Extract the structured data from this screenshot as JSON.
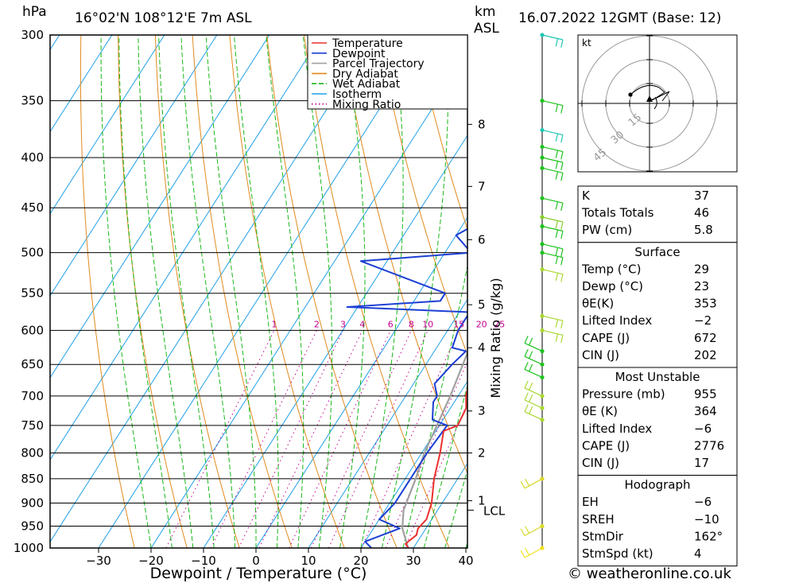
{
  "header": {
    "pressure_unit": "hPa",
    "location": "16°02'N  108°12'E  7m  ASL",
    "km_unit": "km",
    "asl_unit": "ASL",
    "datetime": "16.07.2022  12GMT  (Base: 12)"
  },
  "footer": {
    "copyright": "© weatheronline.co.uk"
  },
  "colors": {
    "temperature": "#e8302f",
    "dewpoint": "#1c3fd4",
    "parcel": "#a0a0a0",
    "dry_adiabat": "#e08a1e",
    "wet_adiabat": "#18b818",
    "isotherm": "#1ea0e8",
    "mixing_ratio": "#c0008f"
  },
  "chart_data": {
    "type": "line",
    "xlabel": "Dewpoint / Temperature (°C)",
    "ylabel": "hPa",
    "right_label": "Mixing Ratio (g/kg)",
    "xlim": [
      -40,
      40
    ],
    "ylim": [
      1000,
      300
    ],
    "x_ticks": [
      "-30",
      "-20",
      "-10",
      "0",
      "10",
      "20",
      "30",
      "40"
    ],
    "pressure_levels": [
      300,
      350,
      400,
      450,
      500,
      550,
      600,
      650,
      700,
      750,
      800,
      850,
      900,
      950,
      1000
    ],
    "km_ticks": [
      {
        "km": "8",
        "p": 370
      },
      {
        "km": "7",
        "p": 428
      },
      {
        "km": "6",
        "p": 485
      },
      {
        "km": "5",
        "p": 565
      },
      {
        "km": "4",
        "p": 625
      },
      {
        "km": "3",
        "p": 725
      },
      {
        "km": "2",
        "p": 800
      },
      {
        "km": "1",
        "p": 895
      }
    ],
    "lcl": {
      "label": "LCL",
      "p": 915
    },
    "mixing_ratios": [
      "1",
      "2",
      "3",
      "4",
      "6",
      "8",
      "10",
      "15",
      "20",
      "25"
    ],
    "legend": [
      "Temperature",
      "Dewpoint",
      "Parcel Trajectory",
      "Dry Adiabat",
      "Wet Adiabat",
      "Isotherm",
      "Mixing Ratio"
    ],
    "series": [
      {
        "name": "Temperature",
        "points": [
          [
            29,
            1000
          ],
          [
            28,
            990
          ],
          [
            29,
            970
          ],
          [
            28.5,
            955
          ],
          [
            29,
            935
          ],
          [
            28,
            900
          ],
          [
            25.5,
            850
          ],
          [
            23.5,
            800
          ],
          [
            21.5,
            760
          ],
          [
            23.5,
            750
          ],
          [
            23,
            720
          ],
          [
            21.5,
            700
          ],
          [
            20.5,
            680
          ],
          [
            19,
            650
          ],
          [
            17.5,
            620
          ],
          [
            16,
            600
          ],
          [
            15,
            580
          ],
          [
            14,
            560
          ],
          [
            12,
            530
          ],
          [
            10,
            500
          ],
          [
            9,
            480
          ],
          [
            7,
            460
          ],
          [
            5,
            440
          ],
          [
            3,
            420
          ],
          [
            1,
            400
          ],
          [
            -1,
            380
          ],
          [
            -3,
            365
          ]
        ]
      },
      {
        "name": "Dewpoint",
        "points": [
          [
            22,
            1000
          ],
          [
            20,
            985
          ],
          [
            25,
            955
          ],
          [
            20,
            935
          ],
          [
            21,
            900
          ],
          [
            21,
            850
          ],
          [
            21,
            800
          ],
          [
            21.5,
            750
          ],
          [
            18,
            740
          ],
          [
            16,
            710
          ],
          [
            16,
            700
          ],
          [
            14,
            680
          ],
          [
            15,
            650
          ],
          [
            16,
            630
          ],
          [
            13,
            625
          ],
          [
            12,
            600
          ],
          [
            12,
            575
          ],
          [
            -12,
            568
          ],
          [
            5,
            560
          ],
          [
            5,
            550
          ],
          [
            -15,
            510
          ],
          [
            5,
            500
          ],
          [
            0,
            480
          ],
          [
            4,
            460
          ],
          [
            -2,
            430
          ],
          [
            0,
            420
          ],
          [
            -5,
            400
          ],
          [
            -10,
            360
          ],
          [
            -18,
            345
          ],
          [
            -30,
            330
          ],
          [
            -40,
            300
          ]
        ]
      },
      {
        "name": "Parcel Trajectory",
        "points": [
          [
            29,
            1000
          ],
          [
            25.5,
            955
          ],
          [
            23.5,
            915
          ],
          [
            22,
            850
          ],
          [
            20.5,
            800
          ],
          [
            18.5,
            700
          ],
          [
            15.5,
            600
          ],
          [
            11,
            500
          ],
          [
            8,
            450
          ],
          [
            4,
            400
          ],
          [
            1,
            370
          ]
        ]
      }
    ]
  },
  "wind_barbs": [
    {
      "p": 300,
      "color": "#1fc6b2"
    },
    {
      "p": 350,
      "color": "#1ec21e"
    },
    {
      "p": 375,
      "color": "#1fc6b2"
    },
    {
      "p": 390,
      "color": "#1ec21e"
    },
    {
      "p": 400,
      "color": "#1ec21e"
    },
    {
      "p": 410,
      "color": "#1ec21e"
    },
    {
      "p": 440,
      "color": "#1ec21e"
    },
    {
      "p": 460,
      "color": "#86d02b"
    },
    {
      "p": 470,
      "color": "#1ec21e"
    },
    {
      "p": 490,
      "color": "#1ec21e"
    },
    {
      "p": 500,
      "color": "#1ec21e"
    },
    {
      "p": 520,
      "color": "#a8d830"
    },
    {
      "p": 580,
      "color": "#a8d830"
    },
    {
      "p": 600,
      "color": "#a8d830"
    },
    {
      "p": 630,
      "color": "#1ec21e"
    },
    {
      "p": 650,
      "color": "#1ec21e"
    },
    {
      "p": 670,
      "color": "#1ec21e"
    },
    {
      "p": 700,
      "color": "#a8d830"
    },
    {
      "p": 720,
      "color": "#a8d830"
    },
    {
      "p": 740,
      "color": "#a8d830"
    },
    {
      "p": 850,
      "color": "#d8d82a"
    },
    {
      "p": 950,
      "color": "#d8d82a"
    },
    {
      "p": 1000,
      "color": "#f0e020"
    }
  ],
  "hodograph": {
    "unit": "kt",
    "rings": [
      "15",
      "30",
      "45"
    ]
  },
  "indices": {
    "rows": [
      {
        "label": "K",
        "value": "37"
      },
      {
        "label": "Totals Totals",
        "value": "46"
      },
      {
        "label": "PW (cm)",
        "value": "5.8"
      }
    ]
  },
  "surface": {
    "title": "Surface",
    "rows": [
      {
        "label": "Temp (°C)",
        "value": "29"
      },
      {
        "label": "Dewp (°C)",
        "value": "23"
      },
      {
        "label": "θE(K)",
        "value": "353"
      },
      {
        "label": "Lifted Index",
        "value": "-2"
      },
      {
        "label": "CAPE (J)",
        "value": "672"
      },
      {
        "label": "CIN (J)",
        "value": "202"
      }
    ]
  },
  "most_unstable": {
    "title": "Most Unstable",
    "rows": [
      {
        "label": "Pressure (mb)",
        "value": "955"
      },
      {
        "label": "θE (K)",
        "value": "364"
      },
      {
        "label": "Lifted Index",
        "value": "-6"
      },
      {
        "label": "CAPE (J)",
        "value": "2776"
      },
      {
        "label": "CIN (J)",
        "value": "17"
      }
    ]
  },
  "hodograph_stats": {
    "title": "Hodograph",
    "rows": [
      {
        "label": "EH",
        "value": "-6"
      },
      {
        "label": "SREH",
        "value": "-10"
      },
      {
        "label": "StmDir",
        "value": "162°"
      },
      {
        "label": "StmSpd (kt)",
        "value": "4"
      }
    ]
  }
}
